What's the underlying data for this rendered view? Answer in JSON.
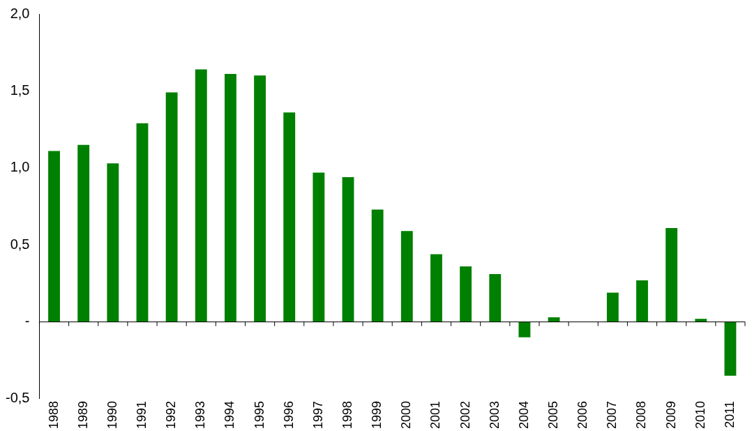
{
  "chart_data": {
    "type": "bar",
    "categories": [
      "1988",
      "1989",
      "1990",
      "1991",
      "1992",
      "1993",
      "1994",
      "1995",
      "1996",
      "1997",
      "1998",
      "1999",
      "2000",
      "2001",
      "2002",
      "2003",
      "2004",
      "2005",
      "2006",
      "2007",
      "2008",
      "2009",
      "2010",
      "2011"
    ],
    "values": [
      1.11,
      1.15,
      1.03,
      1.29,
      1.49,
      1.64,
      1.61,
      1.6,
      1.36,
      0.97,
      0.94,
      0.73,
      0.59,
      0.44,
      0.36,
      0.31,
      -0.1,
      0.03,
      0,
      0.19,
      0.27,
      0.61,
      0.02,
      -0.35
    ],
    "color": "#008000",
    "ylim": [
      -0.5,
      2
    ],
    "yticks": [
      {
        "value": -0.5,
        "label": "-0,5"
      },
      {
        "value": 0,
        "label": "-"
      },
      {
        "value": 0.5,
        "label": "0,5"
      },
      {
        "value": 1,
        "label": "1,0"
      },
      {
        "value": 1.5,
        "label": "1,5"
      },
      {
        "value": 2,
        "label": "2,0"
      }
    ],
    "ref_lines": [
      {
        "axis": "y",
        "value": 0,
        "color": "#000000"
      }
    ],
    "grid": false,
    "legend": false
  }
}
